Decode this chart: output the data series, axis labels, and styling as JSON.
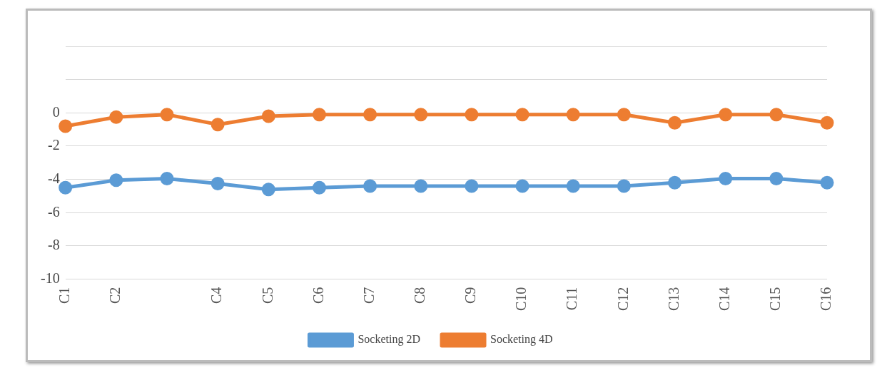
{
  "chart_data": {
    "type": "line",
    "categories": [
      "C1",
      "C2",
      null,
      "C4",
      "C5",
      "C6",
      "C7",
      "C8",
      "C9",
      "C10",
      "C11",
      "C12",
      "C13",
      "C14",
      "C15",
      "C16"
    ],
    "series": [
      {
        "name": "Socketing 2D",
        "color": "#5b9bd5",
        "values": [
          -4.5,
          -4.05,
          -3.95,
          -4.25,
          -4.6,
          -4.5,
          -4.4,
          -4.4,
          -4.4,
          -4.4,
          -4.4,
          -4.4,
          -4.2,
          -3.95,
          -3.95,
          -4.2
        ]
      },
      {
        "name": "Socketing 4D",
        "color": "#ed7d31",
        "values": [
          -0.8,
          -0.25,
          -0.1,
          -0.7,
          -0.2,
          -0.1,
          -0.1,
          -0.1,
          -0.1,
          -0.1,
          -0.1,
          -0.1,
          -0.6,
          -0.1,
          -0.1,
          -0.6
        ]
      }
    ],
    "ylim": [
      -10,
      4
    ],
    "yticks": [
      -10,
      -8,
      -6,
      -4,
      -2,
      0,
      {
        "value": 2,
        "label": null
      },
      {
        "value": 4,
        "label": null
      }
    ],
    "grid": "y",
    "legend": "bottom",
    "marker": "circle",
    "line_style": "solid"
  }
}
